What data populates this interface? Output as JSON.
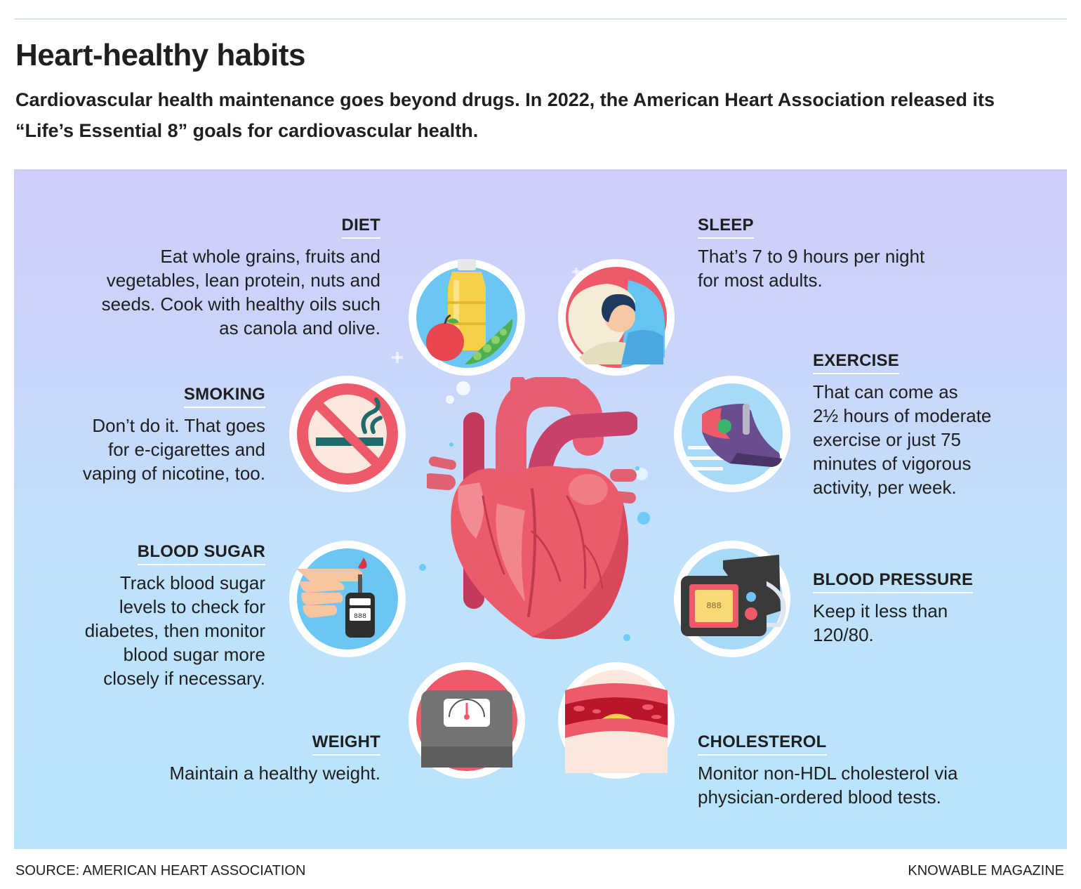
{
  "header": {
    "title": "Heart-healthy habits",
    "subtitle": "Cardiovascular health maintenance goes beyond drugs. In 2022, the American Heart Association released its “Life’s Essential 8” goals for cardiovascular health."
  },
  "habits": {
    "diet": {
      "label": "DIET",
      "lines": [
        "Eat whole grains, fruits and",
        "vegetables, lean protein, nuts and",
        "seeds. Cook with healthy oils such",
        "as canola and olive."
      ],
      "icon": "fruit-oil-icon"
    },
    "sleep": {
      "label": "SLEEP",
      "lines": [
        "That’s 7 to 9 hours per night",
        "for most adults."
      ],
      "icon": "sleeping-person-icon"
    },
    "smoking": {
      "label": "SMOKING",
      "lines": [
        "Don’t do it. That goes",
        "for e-cigarettes and",
        "vaping of nicotine, too."
      ],
      "icon": "no-smoking-icon"
    },
    "exercise": {
      "label": "EXERCISE",
      "lines": [
        "That can come as",
        "2½ hours of moderate",
        "exercise or just 75",
        "minutes of vigorous",
        "activity, per week."
      ],
      "icon": "running-shoe-icon"
    },
    "blood_sugar": {
      "label": "BLOOD SUGAR",
      "lines": [
        "Track blood sugar",
        "levels to check for",
        "diabetes, then monitor",
        "blood sugar more",
        "closely if necessary."
      ],
      "icon": "glucose-meter-icon"
    },
    "blood_pressure": {
      "label": "BLOOD PRESSURE",
      "lines": [
        "Keep it less than",
        "120/80."
      ],
      "icon": "blood-pressure-monitor-icon"
    },
    "weight": {
      "label": "WEIGHT",
      "lines": [
        "Maintain a healthy weight."
      ],
      "icon": "scale-icon"
    },
    "cholesterol": {
      "label": "CHOLESTEROL",
      "lines": [
        "Monitor non-HDL cholesterol via",
        "physician-ordered blood tests."
      ],
      "icon": "artery-plaque-icon"
    }
  },
  "center_icon": "heart-icon",
  "footer": {
    "source": "SOURCE: AMERICAN HEART ASSOCIATION",
    "credit": "KNOWABLE MAGAZINE"
  },
  "colors": {
    "panel_top": "#cfcdfb",
    "panel_bottom": "#b8e4fb",
    "heart": "#ec5b6b",
    "text": "#1f1f1f"
  }
}
